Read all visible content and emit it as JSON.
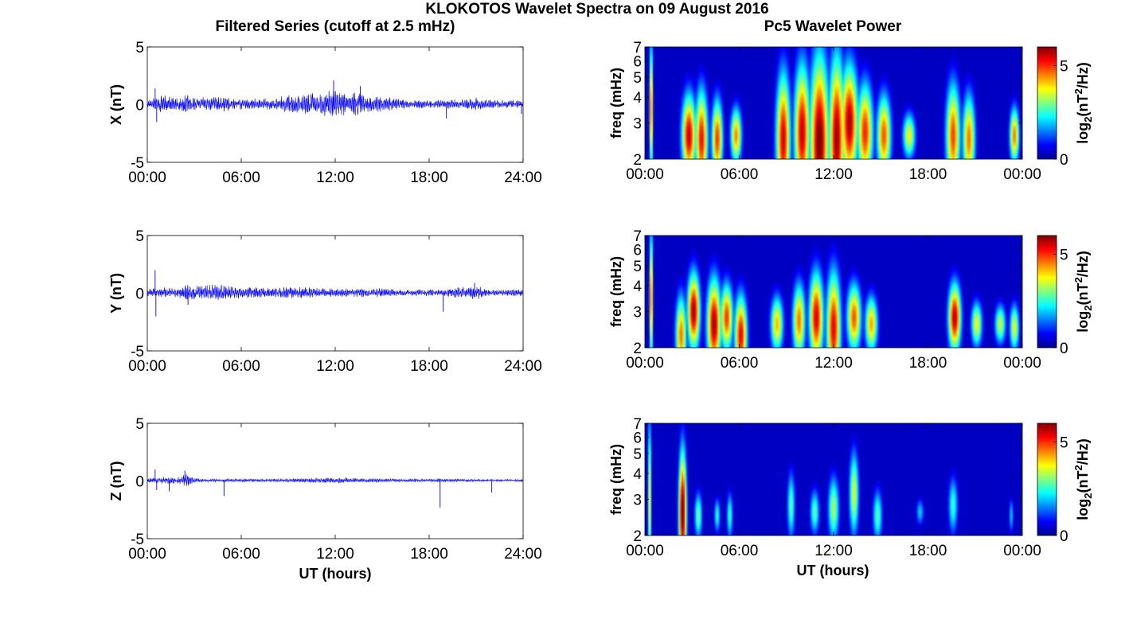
{
  "figure": {
    "main_title": "KLOKOTOS Wavelet Spectra on 09 August 2016",
    "left_title": "Filtered Series (cutoff at 2.5 mHz)",
    "right_title": "Pc5 Wavelet Power",
    "xlabel": "UT (hours)"
  },
  "chart_data": [
    {
      "type": "line",
      "component": "X",
      "ylabel": "X (nT)",
      "ylim": [
        -5,
        5
      ],
      "yticks": [
        "5",
        "0",
        "-5"
      ],
      "xlim": [
        0,
        24
      ],
      "xticks": [
        "00:00",
        "06:00",
        "12:00",
        "18:00",
        "24:00"
      ],
      "series_color": "#0000ff",
      "envelope": {
        "hours": [
          0,
          1,
          2,
          2.6,
          3,
          4,
          5,
          6,
          7,
          8,
          9,
          10,
          11,
          11.9,
          12.5,
          13,
          13.5,
          14,
          15,
          16,
          17,
          18,
          19,
          20,
          21,
          22,
          23,
          24
        ],
        "amplitude_nT": [
          0.3,
          0.8,
          0.6,
          1.0,
          0.6,
          0.6,
          0.7,
          0.5,
          0.5,
          0.5,
          0.9,
          1.1,
          1.0,
          1.3,
          1.0,
          1.1,
          1.2,
          0.8,
          0.7,
          0.5,
          0.4,
          0.4,
          0.4,
          0.5,
          0.6,
          0.4,
          0.4,
          0.3
        ]
      },
      "spikes": [
        {
          "hour": 0.5,
          "value": 1.4
        },
        {
          "hour": 0.6,
          "value": -1.5
        },
        {
          "hour": 11.9,
          "value": 2.1
        },
        {
          "hour": 13.6,
          "value": 1.6
        },
        {
          "hour": 19.1,
          "value": -1.2
        },
        {
          "hour": 23.9,
          "value": -0.8
        }
      ]
    },
    {
      "type": "line",
      "component": "Y",
      "ylabel": "Y (nT)",
      "ylim": [
        -5,
        5
      ],
      "yticks": [
        "5",
        "0",
        "-5"
      ],
      "xlim": [
        0,
        24
      ],
      "xticks": [
        "00:00",
        "06:00",
        "12:00",
        "18:00",
        "24:00"
      ],
      "series_color": "#0000ff",
      "envelope": {
        "hours": [
          0,
          1,
          2,
          2.6,
          3,
          4,
          5,
          6,
          7,
          8,
          9,
          10,
          11,
          12,
          13,
          14,
          15,
          16,
          17,
          18,
          19,
          20,
          21,
          22,
          23,
          24
        ],
        "amplitude_nT": [
          0.3,
          0.5,
          0.4,
          0.8,
          0.6,
          0.7,
          0.8,
          0.5,
          0.5,
          0.4,
          0.5,
          0.5,
          0.4,
          0.4,
          0.4,
          0.4,
          0.4,
          0.3,
          0.3,
          0.3,
          0.3,
          0.5,
          0.6,
          0.3,
          0.3,
          0.3
        ]
      },
      "spikes": [
        {
          "hour": 0.5,
          "value": 2.0
        },
        {
          "hour": 0.55,
          "value": -2.0
        },
        {
          "hour": 2.6,
          "value": -1.0
        },
        {
          "hour": 18.9,
          "value": -1.6
        },
        {
          "hour": 20.9,
          "value": 0.9
        }
      ]
    },
    {
      "type": "line",
      "component": "Z",
      "ylabel": "Z (nT)",
      "ylim": [
        -5,
        5
      ],
      "yticks": [
        "5",
        "0",
        "-5"
      ],
      "xlim": [
        0,
        24
      ],
      "xticks": [
        "00:00",
        "06:00",
        "12:00",
        "18:00",
        "24:00"
      ],
      "series_color": "#0000ff",
      "envelope": {
        "hours": [
          0,
          1,
          2,
          2.5,
          3,
          4,
          6,
          8,
          10,
          12,
          13,
          14,
          16,
          18,
          20,
          22,
          24
        ],
        "amplitude_nT": [
          0.15,
          0.3,
          0.3,
          0.6,
          0.2,
          0.15,
          0.15,
          0.15,
          0.2,
          0.25,
          0.25,
          0.2,
          0.15,
          0.15,
          0.15,
          0.1,
          0.1
        ]
      },
      "spikes": [
        {
          "hour": 0.5,
          "value": 1.0
        },
        {
          "hour": 0.6,
          "value": -0.8
        },
        {
          "hour": 1.4,
          "value": -0.9
        },
        {
          "hour": 2.4,
          "value": 0.9
        },
        {
          "hour": 4.9,
          "value": -1.3
        },
        {
          "hour": 18.7,
          "value": -2.3
        },
        {
          "hour": 22.0,
          "value": -1.0
        }
      ]
    },
    {
      "type": "heatmap",
      "component": "X",
      "ylabel": "freq (mHz)",
      "yscale": "log",
      "ylim": [
        2,
        7
      ],
      "yticks": [
        "2",
        "3",
        "4",
        "5",
        "6",
        "7"
      ],
      "xlim": [
        0,
        24
      ],
      "xticks": [
        "00:00",
        "06:00",
        "12:00",
        "18:00",
        "00:00"
      ],
      "colorbar": {
        "label": "log2(nT2/Hz)",
        "ticks": [
          "0",
          "5"
        ],
        "range": [
          0,
          6
        ],
        "colormap": "jet"
      },
      "blobs": [
        {
          "hour": 2.8,
          "freq": 2.6,
          "power": 5.6,
          "width_h": 0.45,
          "top_mHz": 4.0
        },
        {
          "hour": 3.6,
          "freq": 2.5,
          "power": 5.3,
          "width_h": 0.4,
          "top_mHz": 4.2
        },
        {
          "hour": 4.6,
          "freq": 2.5,
          "power": 5.0,
          "width_h": 0.35,
          "top_mHz": 3.8
        },
        {
          "hour": 5.8,
          "freq": 2.6,
          "power": 4.5,
          "width_h": 0.35,
          "top_mHz": 3.5
        },
        {
          "hour": 8.8,
          "freq": 2.5,
          "power": 5.5,
          "width_h": 0.45,
          "top_mHz": 5.0
        },
        {
          "hour": 10.0,
          "freq": 2.7,
          "power": 5.6,
          "width_h": 0.5,
          "top_mHz": 5.5
        },
        {
          "hour": 11.1,
          "freq": 2.4,
          "power": 6.2,
          "width_h": 0.6,
          "top_mHz": 6.0
        },
        {
          "hour": 12.2,
          "freq": 2.5,
          "power": 5.9,
          "width_h": 0.5,
          "top_mHz": 6.0
        },
        {
          "hour": 13.0,
          "freq": 3.0,
          "power": 5.8,
          "width_h": 0.55,
          "top_mHz": 5.5
        },
        {
          "hour": 14.0,
          "freq": 2.7,
          "power": 5.1,
          "width_h": 0.5,
          "top_mHz": 4.5
        },
        {
          "hour": 15.2,
          "freq": 2.6,
          "power": 4.8,
          "width_h": 0.45,
          "top_mHz": 4.0
        },
        {
          "hour": 16.8,
          "freq": 2.6,
          "power": 3.8,
          "width_h": 0.4,
          "top_mHz": 3.3
        },
        {
          "hour": 19.6,
          "freq": 2.6,
          "power": 4.9,
          "width_h": 0.45,
          "top_mHz": 4.5
        },
        {
          "hour": 20.6,
          "freq": 2.5,
          "power": 4.6,
          "width_h": 0.4,
          "top_mHz": 4.0
        },
        {
          "hour": 23.5,
          "freq": 2.6,
          "power": 4.6,
          "width_h": 0.3,
          "top_mHz": 3.5
        },
        {
          "hour": 0.4,
          "freq": 3.5,
          "power": 5.0,
          "width_h": 0.12,
          "top_mHz": 7.0
        }
      ]
    },
    {
      "type": "heatmap",
      "component": "Y",
      "ylabel": "freq (mHz)",
      "yscale": "log",
      "ylim": [
        2,
        7
      ],
      "yticks": [
        "2",
        "3",
        "4",
        "5",
        "6",
        "7"
      ],
      "xlim": [
        0,
        24
      ],
      "xticks": [
        "00:00",
        "06:00",
        "12:00",
        "18:00",
        "00:00"
      ],
      "colorbar": {
        "label": "log2(nT2/Hz)",
        "ticks": [
          "0",
          "5"
        ],
        "range": [
          0,
          6
        ],
        "colormap": "jet"
      },
      "blobs": [
        {
          "hour": 0.4,
          "freq": 3.5,
          "power": 5.0,
          "width_h": 0.12,
          "top_mHz": 7.0
        },
        {
          "hour": 2.3,
          "freq": 2.3,
          "power": 4.6,
          "width_h": 0.35,
          "top_mHz": 3.5
        },
        {
          "hour": 3.1,
          "freq": 3.0,
          "power": 5.8,
          "width_h": 0.4,
          "top_mHz": 4.5
        },
        {
          "hour": 4.4,
          "freq": 2.6,
          "power": 5.8,
          "width_h": 0.45,
          "top_mHz": 4.2
        },
        {
          "hour": 5.2,
          "freq": 2.8,
          "power": 5.0,
          "width_h": 0.4,
          "top_mHz": 4.0
        },
        {
          "hour": 6.1,
          "freq": 2.3,
          "power": 5.4,
          "width_h": 0.4,
          "top_mHz": 3.5
        },
        {
          "hour": 8.4,
          "freq": 2.6,
          "power": 4.2,
          "width_h": 0.4,
          "top_mHz": 3.5
        },
        {
          "hour": 9.8,
          "freq": 2.7,
          "power": 4.6,
          "width_h": 0.4,
          "top_mHz": 4.0
        },
        {
          "hour": 10.9,
          "freq": 2.8,
          "power": 5.5,
          "width_h": 0.45,
          "top_mHz": 4.5
        },
        {
          "hour": 12.0,
          "freq": 2.5,
          "power": 5.4,
          "width_h": 0.45,
          "top_mHz": 4.5
        },
        {
          "hour": 13.3,
          "freq": 2.8,
          "power": 4.8,
          "width_h": 0.45,
          "top_mHz": 4.0
        },
        {
          "hour": 14.4,
          "freq": 2.6,
          "power": 4.3,
          "width_h": 0.4,
          "top_mHz": 3.5
        },
        {
          "hour": 19.7,
          "freq": 2.8,
          "power": 5.7,
          "width_h": 0.4,
          "top_mHz": 4.0
        },
        {
          "hour": 21.1,
          "freq": 2.6,
          "power": 3.8,
          "width_h": 0.35,
          "top_mHz": 3.3
        },
        {
          "hour": 22.6,
          "freq": 2.6,
          "power": 3.5,
          "width_h": 0.35,
          "top_mHz": 3.2
        },
        {
          "hour": 23.5,
          "freq": 2.5,
          "power": 3.7,
          "width_h": 0.3,
          "top_mHz": 3.2
        }
      ]
    },
    {
      "type": "heatmap",
      "component": "Z",
      "ylabel": "freq (mHz)",
      "yscale": "log",
      "ylim": [
        2,
        7
      ],
      "yticks": [
        "2",
        "3",
        "4",
        "5",
        "6",
        "7"
      ],
      "xlim": [
        0,
        24
      ],
      "xticks": [
        "00:00",
        "06:00",
        "12:00",
        "18:00",
        "00:00"
      ],
      "colorbar": {
        "label": "log2(nT2/Hz)",
        "ticks": [
          "0",
          "5"
        ],
        "range": [
          0,
          6
        ],
        "colormap": "jet"
      },
      "blobs": [
        {
          "hour": 0.3,
          "freq": 3.0,
          "power": 3.9,
          "width_h": 0.12,
          "top_mHz": 7.0
        },
        {
          "hour": 2.4,
          "freq": 2.6,
          "power": 6.2,
          "width_h": 0.25,
          "top_mHz": 5.0
        },
        {
          "hour": 3.4,
          "freq": 2.5,
          "power": 3.0,
          "width_h": 0.25,
          "top_mHz": 3.2
        },
        {
          "hour": 4.6,
          "freq": 2.5,
          "power": 2.5,
          "width_h": 0.2,
          "top_mHz": 3.0
        },
        {
          "hour": 5.4,
          "freq": 2.5,
          "power": 2.6,
          "width_h": 0.2,
          "top_mHz": 3.2
        },
        {
          "hour": 9.3,
          "freq": 2.8,
          "power": 2.8,
          "width_h": 0.25,
          "top_mHz": 4.0
        },
        {
          "hour": 10.8,
          "freq": 2.6,
          "power": 2.8,
          "width_h": 0.3,
          "top_mHz": 3.3
        },
        {
          "hour": 12.0,
          "freq": 2.7,
          "power": 3.3,
          "width_h": 0.35,
          "top_mHz": 3.8
        },
        {
          "hour": 13.3,
          "freq": 3.2,
          "power": 3.6,
          "width_h": 0.3,
          "top_mHz": 5.0
        },
        {
          "hour": 14.8,
          "freq": 2.5,
          "power": 2.8,
          "width_h": 0.3,
          "top_mHz": 3.3
        },
        {
          "hour": 17.5,
          "freq": 2.6,
          "power": 2.0,
          "width_h": 0.25,
          "top_mHz": 3.0
        },
        {
          "hour": 19.6,
          "freq": 2.8,
          "power": 2.6,
          "width_h": 0.3,
          "top_mHz": 3.8
        },
        {
          "hour": 23.3,
          "freq": 2.5,
          "power": 2.0,
          "width_h": 0.15,
          "top_mHz": 3.0
        }
      ]
    }
  ],
  "colormap_stops": [
    "#00008f",
    "#0000ff",
    "#00ffff",
    "#ffff00",
    "#ff0000",
    "#800000"
  ]
}
